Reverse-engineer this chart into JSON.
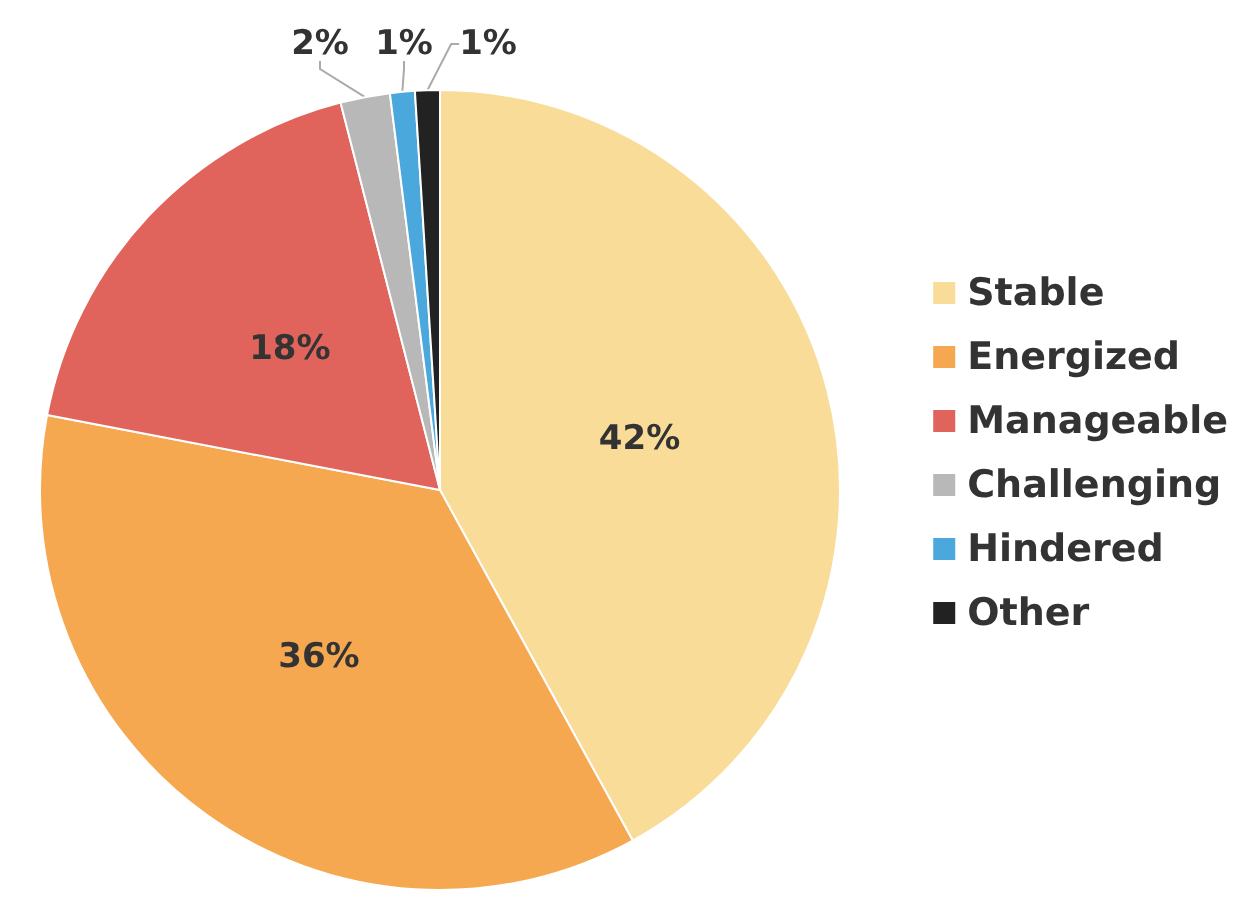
{
  "chart_data": {
    "type": "pie",
    "categories": [
      "Stable",
      "Energized",
      "Manageable",
      "Challenging",
      "Hindered",
      "Other"
    ],
    "values": [
      42,
      36,
      18,
      2,
      1,
      1
    ],
    "value_labels": [
      "42%",
      "36%",
      "18%",
      "2%",
      "1%",
      "1%"
    ],
    "colors": [
      "#f8dc98",
      "#f5a850",
      "#e0645c",
      "#b8b8b8",
      "#4aa8dc",
      "#222222"
    ],
    "legend": "right"
  }
}
